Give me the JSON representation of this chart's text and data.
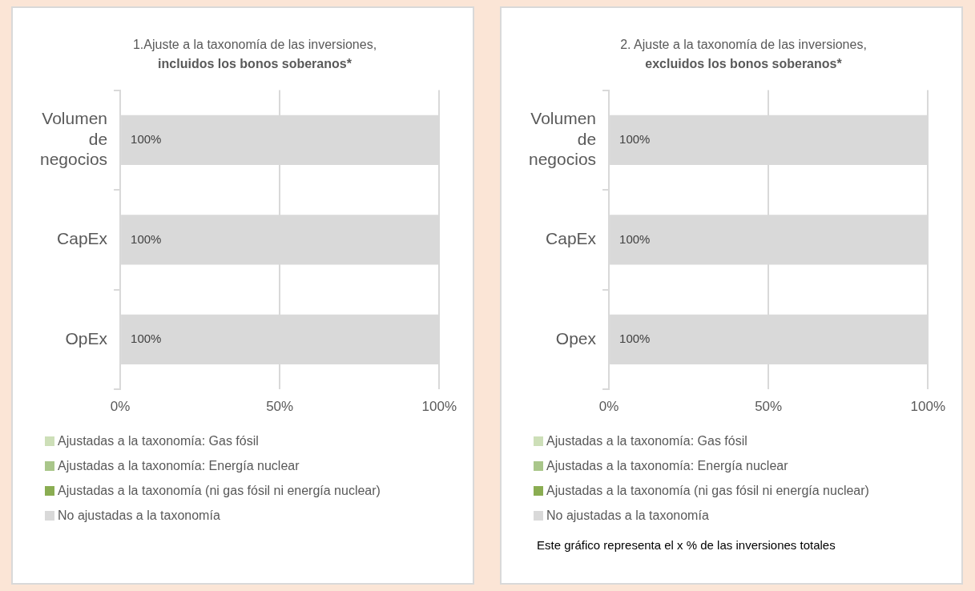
{
  "chart_data": [
    {
      "type": "bar",
      "title": "1.Ajuste a la taxonomía de las inversiones,",
      "subtitle": "incluidos los bonos soberanos*",
      "orientation": "horizontal",
      "stacked": true,
      "categories": [
        "Volumen de negocios",
        "CapEx",
        "OpEx"
      ],
      "series": [
        {
          "name": "Ajustadas a la taxonomía: Gas fósil",
          "color": "#cddfb8",
          "values": [
            0,
            0,
            0
          ]
        },
        {
          "name": "Ajustadas a la taxonomía: Energía nuclear",
          "color": "#a9c68a",
          "values": [
            0,
            0,
            0
          ]
        },
        {
          "name": "Ajustadas a la taxonomía (ni gas fósil ni energía nuclear)",
          "color": "#8aad52",
          "values": [
            0,
            0,
            0
          ]
        },
        {
          "name": "No ajustadas a la taxonomía",
          "color": "#d9d9d9",
          "values": [
            100,
            100,
            100
          ],
          "value_labels": [
            "100%",
            "100%",
            "100%"
          ]
        }
      ],
      "xlim": [
        0,
        100
      ],
      "xticks": [
        {
          "value": 0,
          "label": "0%"
        },
        {
          "value": 50,
          "label": "50%"
        },
        {
          "value": 100,
          "label": "100%"
        }
      ],
      "grid": "x",
      "legend": "bottom"
    },
    {
      "type": "bar",
      "title": "2. Ajuste a la taxonomía de las inversiones,",
      "subtitle": "excluidos los bonos soberanos*",
      "orientation": "horizontal",
      "stacked": true,
      "categories": [
        "Volumen de negocios",
        "CapEx",
        "Opex"
      ],
      "series": [
        {
          "name": "Ajustadas a la taxonomía: Gas fósil",
          "color": "#cddfb8",
          "values": [
            0,
            0,
            0
          ]
        },
        {
          "name": "Ajustadas a la taxonomía: Energía nuclear",
          "color": "#a9c68a",
          "values": [
            0,
            0,
            0
          ]
        },
        {
          "name": "Ajustadas a la taxonomía (ni gas fósil ni energía nuclear)",
          "color": "#8aad52",
          "values": [
            0,
            0,
            0
          ]
        },
        {
          "name": "No ajustadas a la taxonomía",
          "color": "#d9d9d9",
          "values": [
            100,
            100,
            100
          ],
          "value_labels": [
            "100%",
            "100%",
            "100%"
          ]
        }
      ],
      "xlim": [
        0,
        100
      ],
      "xticks": [
        {
          "value": 0,
          "label": "0%"
        },
        {
          "value": 50,
          "label": "50%"
        },
        {
          "value": 100,
          "label": "100%"
        }
      ],
      "grid": "x",
      "legend": "bottom",
      "annotations": [
        "Este gráfico representa el x % de las inversiones totales"
      ]
    }
  ]
}
